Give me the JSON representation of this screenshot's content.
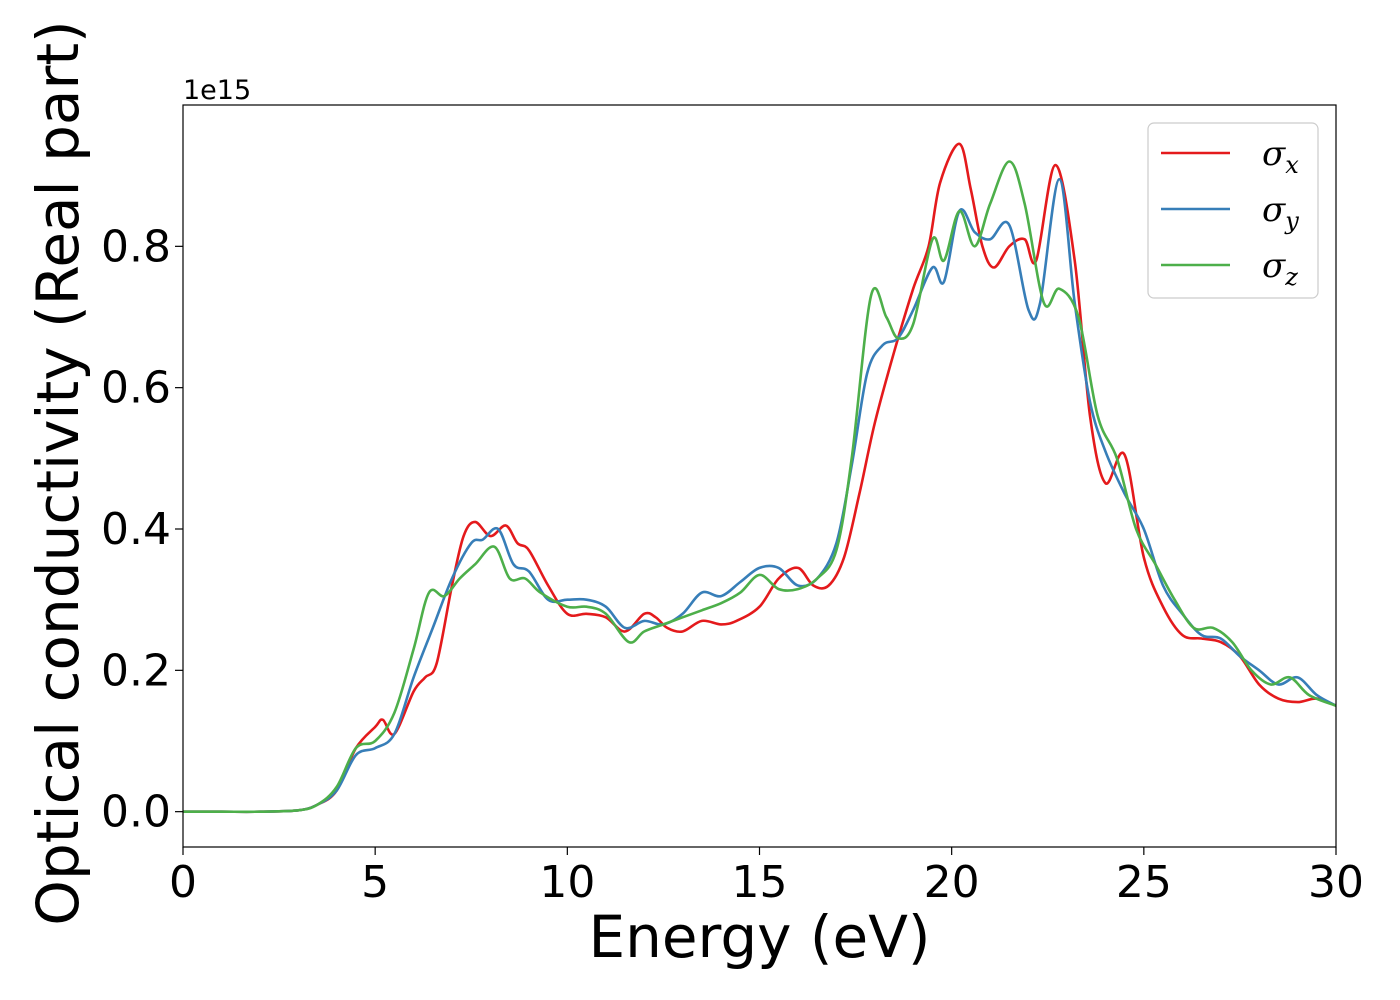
{
  "chart_data": {
    "type": "line",
    "title": "",
    "xlabel": "Energy (eV)",
    "ylabel": "Optical conductivity (Real part)",
    "y_offset_label": "1e15",
    "xlim": [
      0,
      30
    ],
    "ylim": [
      -0.05,
      1.0
    ],
    "xticks": [
      0,
      5,
      10,
      15,
      20,
      25,
      30
    ],
    "xtick_labels": [
      "0",
      "5",
      "10",
      "15",
      "20",
      "25",
      "30"
    ],
    "yticks": [
      0.0,
      0.2,
      0.4,
      0.6,
      0.8
    ],
    "ytick_labels": [
      "0.0",
      "0.2",
      "0.4",
      "0.6",
      "0.8"
    ],
    "grid": false,
    "legend_position": "top-right",
    "series": [
      {
        "name": "σx",
        "name_base": "σ",
        "name_sub": "x",
        "color": "#e41a1c",
        "x": [
          0,
          1,
          2,
          3,
          3.5,
          4,
          4.5,
          5,
          5.2,
          5.5,
          6,
          6.3,
          6.6,
          7,
          7.3,
          7.6,
          8,
          8.4,
          8.7,
          9,
          9.5,
          10,
          10.5,
          11,
          11.5,
          12,
          12.3,
          12.6,
          13,
          13.5,
          14,
          14.4,
          15,
          15.5,
          16,
          16.4,
          16.8,
          17.2,
          17.6,
          18,
          18.5,
          19,
          19.4,
          19.7,
          20.2,
          20.5,
          20.8,
          21.1,
          21.5,
          21.9,
          22.2,
          22.7,
          23.2,
          23.6,
          24,
          24.5,
          25,
          25.5,
          26,
          26.5,
          27,
          27.5,
          28,
          28.5,
          29,
          29.5,
          30
        ],
        "y": [
          0,
          0,
          0,
          0.002,
          0.01,
          0.03,
          0.09,
          0.12,
          0.13,
          0.11,
          0.17,
          0.19,
          0.21,
          0.32,
          0.39,
          0.41,
          0.39,
          0.405,
          0.38,
          0.37,
          0.32,
          0.28,
          0.28,
          0.275,
          0.255,
          0.28,
          0.275,
          0.26,
          0.255,
          0.27,
          0.265,
          0.27,
          0.29,
          0.33,
          0.345,
          0.32,
          0.32,
          0.36,
          0.45,
          0.55,
          0.65,
          0.74,
          0.8,
          0.89,
          0.945,
          0.88,
          0.8,
          0.77,
          0.8,
          0.81,
          0.78,
          0.915,
          0.78,
          0.56,
          0.465,
          0.505,
          0.36,
          0.29,
          0.25,
          0.245,
          0.24,
          0.22,
          0.18,
          0.16,
          0.155,
          0.16,
          0.15
        ]
      },
      {
        "name": "σy",
        "name_base": "σ",
        "name_sub": "y",
        "color": "#377eb8",
        "x": [
          0,
          1,
          2,
          3,
          3.5,
          4,
          4.5,
          5,
          5.5,
          6,
          6.5,
          7,
          7.5,
          7.8,
          8.2,
          8.6,
          9,
          9.5,
          10,
          10.5,
          11,
          11.5,
          12,
          12.5,
          13,
          13.5,
          14,
          14.5,
          15,
          15.5,
          16,
          16.5,
          17,
          17.4,
          17.8,
          18.2,
          18.6,
          19,
          19.5,
          19.8,
          20.2,
          20.6,
          21,
          21.5,
          22,
          22.3,
          22.8,
          23.2,
          23.6,
          24,
          24.5,
          25,
          25.5,
          26,
          26.5,
          27,
          27.5,
          28,
          28.5,
          29,
          29.5,
          30
        ],
        "y": [
          0,
          0,
          0,
          0.002,
          0.01,
          0.03,
          0.08,
          0.09,
          0.11,
          0.19,
          0.26,
          0.33,
          0.38,
          0.385,
          0.4,
          0.35,
          0.34,
          0.3,
          0.3,
          0.3,
          0.29,
          0.26,
          0.27,
          0.265,
          0.28,
          0.31,
          0.305,
          0.325,
          0.345,
          0.345,
          0.32,
          0.33,
          0.38,
          0.49,
          0.62,
          0.66,
          0.67,
          0.71,
          0.77,
          0.75,
          0.85,
          0.82,
          0.81,
          0.83,
          0.71,
          0.72,
          0.895,
          0.72,
          0.58,
          0.51,
          0.45,
          0.4,
          0.32,
          0.28,
          0.25,
          0.245,
          0.22,
          0.2,
          0.18,
          0.19,
          0.165,
          0.15
        ]
      },
      {
        "name": "σz",
        "name_base": "σ",
        "name_sub": "z",
        "color": "#4daf4a",
        "x": [
          0,
          1,
          2,
          3,
          3.5,
          4,
          4.5,
          5,
          5.5,
          6,
          6.4,
          6.8,
          7.2,
          7.6,
          8.1,
          8.5,
          8.9,
          9.3,
          10,
          10.5,
          11,
          11.6,
          12,
          12.5,
          13,
          13.5,
          14,
          14.5,
          15,
          15.5,
          16,
          16.5,
          17,
          17.4,
          17.9,
          18.3,
          18.6,
          19,
          19.5,
          19.8,
          20.2,
          20.6,
          21,
          21.5,
          21.9,
          22.4,
          22.8,
          23.3,
          23.8,
          24.3,
          24.8,
          25.3,
          25.8,
          26.3,
          26.8,
          27.3,
          27.8,
          28.3,
          28.8,
          29.3,
          30
        ],
        "y": [
          0,
          0,
          0,
          0.002,
          0.01,
          0.035,
          0.09,
          0.1,
          0.14,
          0.23,
          0.31,
          0.305,
          0.33,
          0.35,
          0.375,
          0.33,
          0.33,
          0.31,
          0.29,
          0.29,
          0.28,
          0.24,
          0.255,
          0.265,
          0.275,
          0.285,
          0.295,
          0.31,
          0.335,
          0.315,
          0.315,
          0.33,
          0.37,
          0.5,
          0.73,
          0.7,
          0.67,
          0.69,
          0.81,
          0.78,
          0.85,
          0.8,
          0.86,
          0.92,
          0.86,
          0.72,
          0.74,
          0.7,
          0.56,
          0.5,
          0.4,
          0.35,
          0.3,
          0.26,
          0.26,
          0.24,
          0.2,
          0.18,
          0.19,
          0.165,
          0.15
        ]
      }
    ]
  }
}
